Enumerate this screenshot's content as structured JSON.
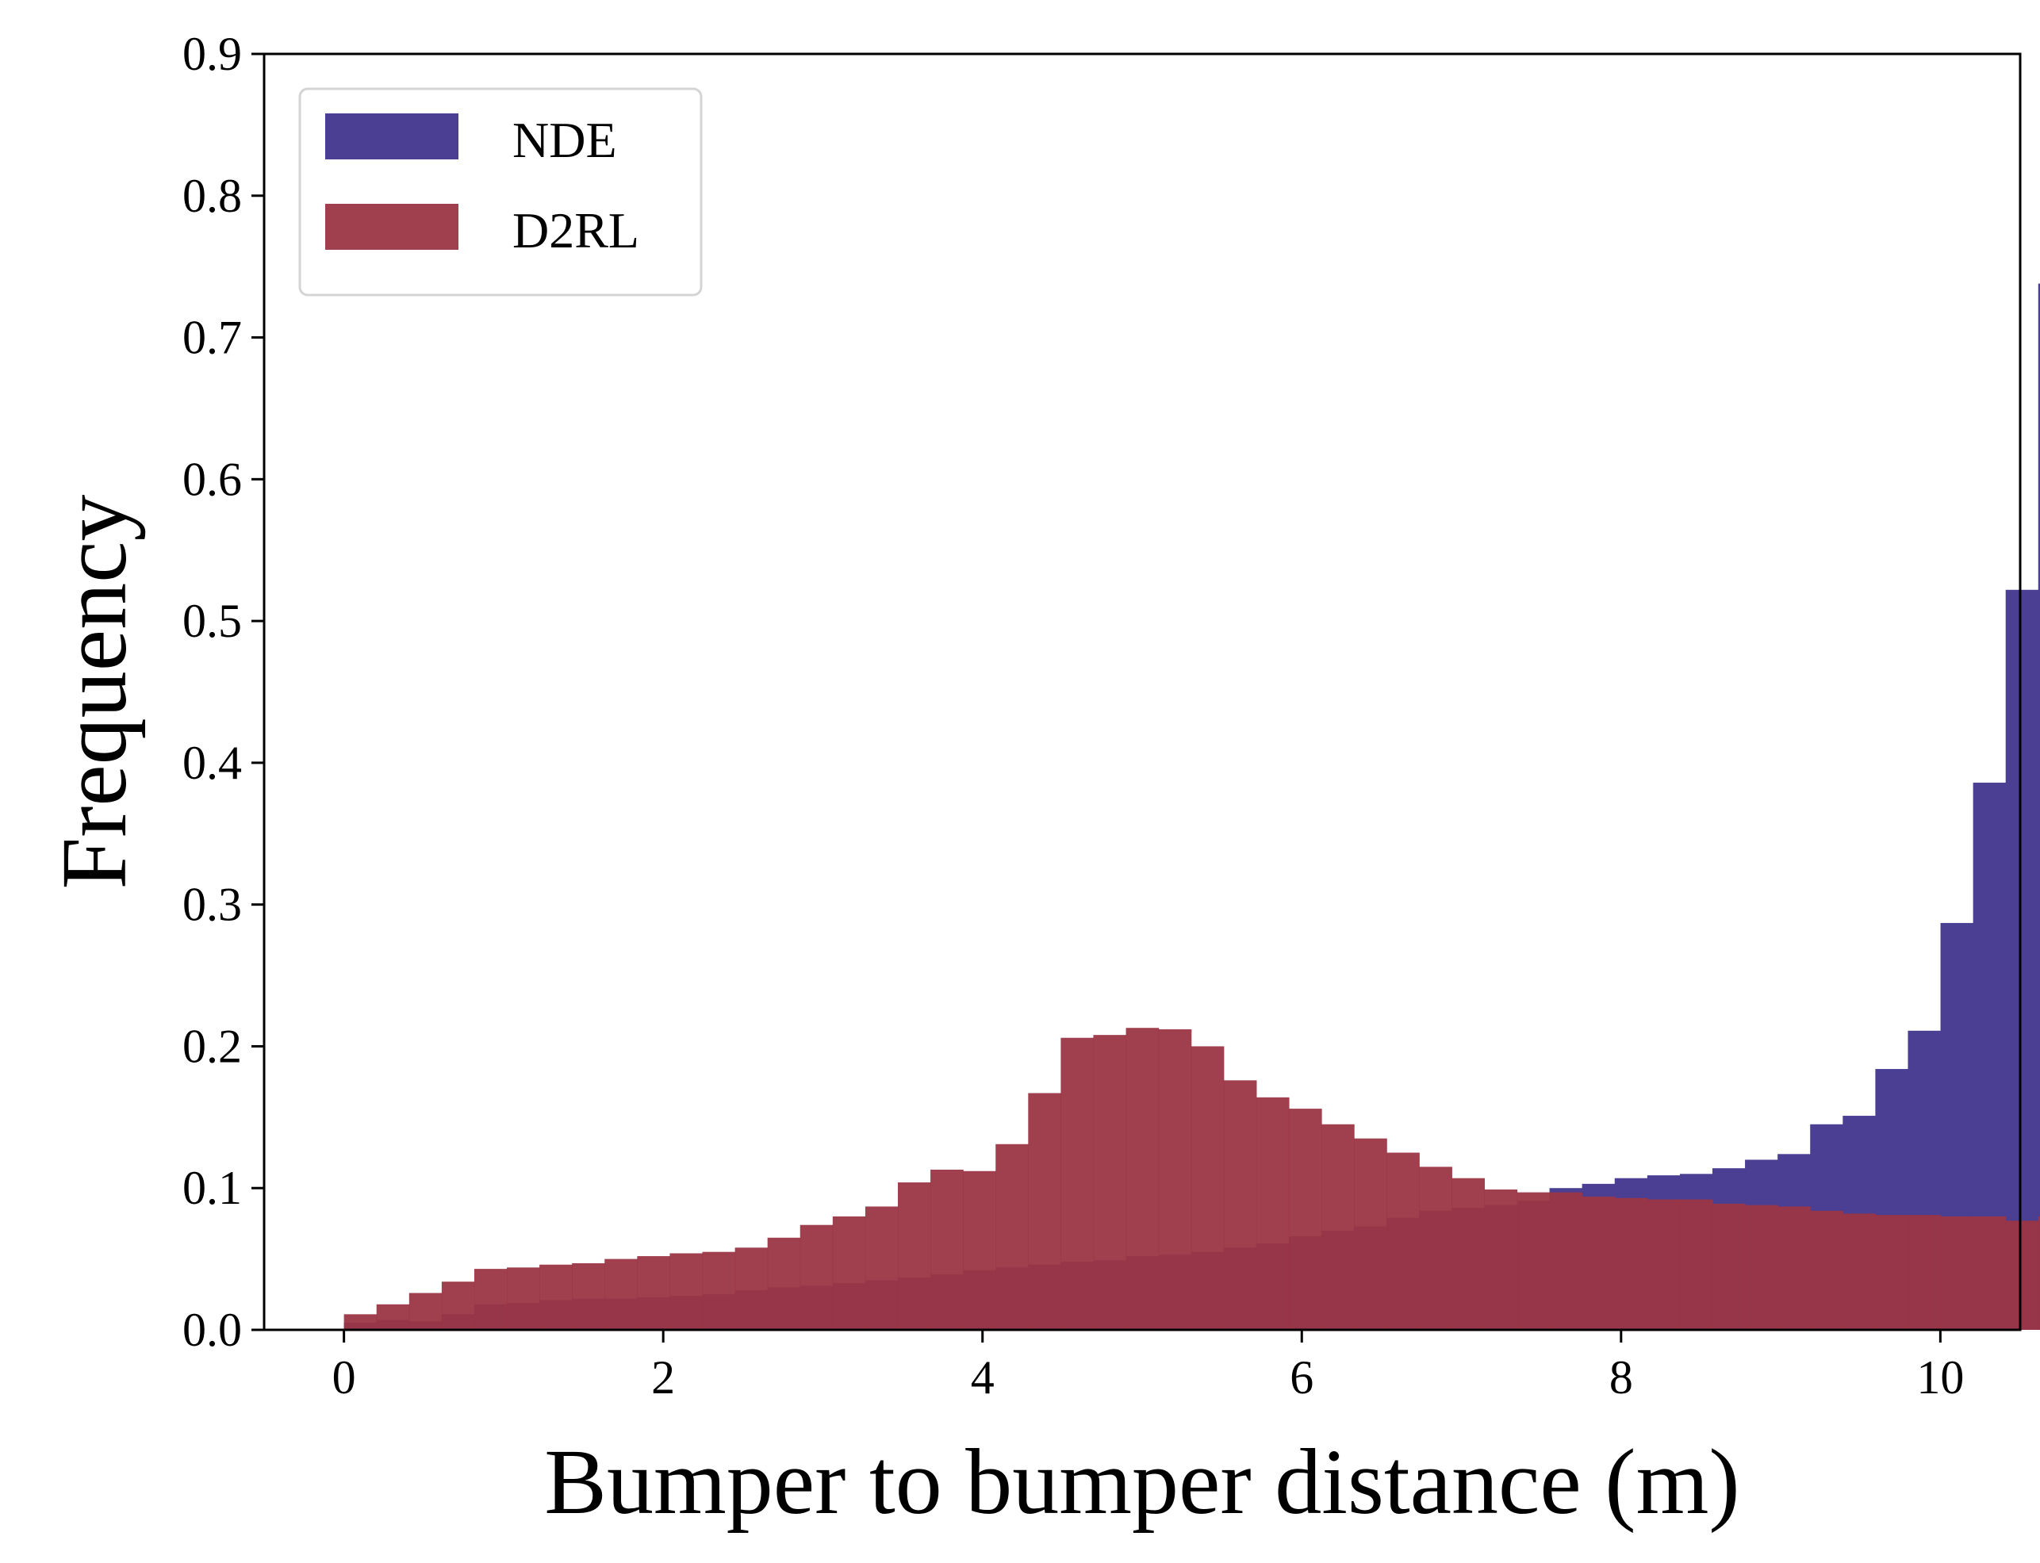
{
  "chart_data": {
    "type": "bar",
    "xlabel": "Bumper to bumper distance (m)",
    "ylabel": "Frequency",
    "xlim": [
      -0.5,
      10.5
    ],
    "ylim": [
      0,
      0.9
    ],
    "xticks": [
      0,
      2,
      4,
      6,
      8,
      10
    ],
    "xtick_labels": [
      "0",
      "2",
      "4",
      "6",
      "8",
      "10"
    ],
    "yticks": [
      0,
      0.1,
      0.2,
      0.3,
      0.4,
      0.5,
      0.6,
      0.7,
      0.8,
      0.9
    ],
    "ytick_labels": [
      "0.0",
      "0.1",
      "0.2",
      "0.3",
      "0.4",
      "0.5",
      "0.6",
      "0.7",
      "0.8",
      "0.9"
    ],
    "grid": false,
    "legend_position": "top-left",
    "bin_edges_start": 0,
    "bin_width": 0.2041,
    "series": [
      {
        "name": "NDE",
        "color": "#4b3f93",
        "values": [
          0.005,
          0.007,
          0.006,
          0.011,
          0.018,
          0.019,
          0.021,
          0.022,
          0.022,
          0.023,
          0.024,
          0.025,
          0.028,
          0.03,
          0.031,
          0.033,
          0.035,
          0.037,
          0.039,
          0.042,
          0.044,
          0.046,
          0.048,
          0.049,
          0.052,
          0.053,
          0.055,
          0.058,
          0.061,
          0.066,
          0.07,
          0.073,
          0.079,
          0.084,
          0.086,
          0.088,
          0.091,
          0.1,
          0.103,
          0.107,
          0.109,
          0.11,
          0.114,
          0.12,
          0.124,
          0.145,
          0.151,
          0.184,
          0.211,
          0.287,
          0.386,
          0.522,
          0.738
        ]
      },
      {
        "name": "D2RL",
        "color": "#9b3545",
        "opacity": 0.95,
        "values": [
          0.011,
          0.018,
          0.026,
          0.034,
          0.043,
          0.044,
          0.046,
          0.047,
          0.05,
          0.052,
          0.054,
          0.055,
          0.058,
          0.065,
          0.074,
          0.08,
          0.087,
          0.104,
          0.113,
          0.112,
          0.131,
          0.167,
          0.206,
          0.208,
          0.213,
          0.212,
          0.2,
          0.176,
          0.164,
          0.156,
          0.145,
          0.135,
          0.125,
          0.115,
          0.107,
          0.099,
          0.097,
          0.097,
          0.094,
          0.093,
          0.092,
          0.092,
          0.089,
          0.088,
          0.087,
          0.084,
          0.082,
          0.081,
          0.081,
          0.08,
          0.08,
          0.077,
          0.08
        ]
      }
    ]
  }
}
